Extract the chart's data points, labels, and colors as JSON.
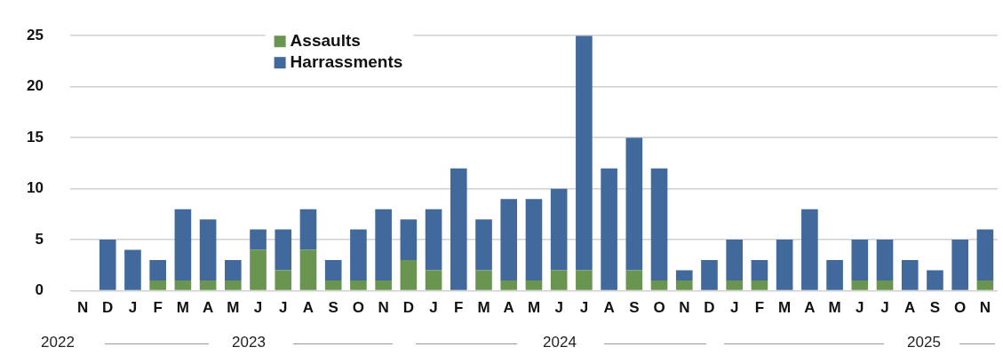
{
  "chart_data": {
    "type": "bar",
    "stacked": true,
    "categories": [
      "N",
      "D",
      "J",
      "F",
      "M",
      "A",
      "M",
      "J",
      "J",
      "A",
      "S",
      "O",
      "N",
      "D",
      "J",
      "F",
      "M",
      "A",
      "M",
      "J",
      "J",
      "A",
      "S",
      "O",
      "N",
      "D",
      "J",
      "F",
      "M",
      "A",
      "M",
      "J",
      "J",
      "A",
      "S",
      "O",
      "N"
    ],
    "series": [
      {
        "name": "Assaults",
        "color": "#6a9550",
        "values": [
          0,
          0,
          0,
          1,
          1,
          1,
          1,
          4,
          2,
          4,
          1,
          1,
          1,
          3,
          2,
          0,
          2,
          1,
          1,
          2,
          2,
          0,
          2,
          1,
          1,
          0,
          1,
          1,
          0,
          0,
          0,
          1,
          1,
          0,
          0,
          0,
          1
        ]
      },
      {
        "name": "Harrassments",
        "color": "#41699b",
        "values": [
          0,
          5,
          4,
          2,
          7,
          6,
          2,
          2,
          4,
          4,
          2,
          5,
          7,
          4,
          6,
          12,
          5,
          8,
          8,
          8,
          23,
          12,
          13,
          11,
          1,
          3,
          4,
          2,
          5,
          8,
          3,
          4,
          4,
          3,
          2,
          5,
          5
        ]
      }
    ],
    "ylim": [
      0,
      25
    ],
    "yticks": [
      0,
      5,
      10,
      15,
      20,
      25
    ],
    "grid": "y",
    "legend": "top left",
    "annotations": [
      "2022",
      "2023",
      "2024",
      "2025"
    ]
  }
}
